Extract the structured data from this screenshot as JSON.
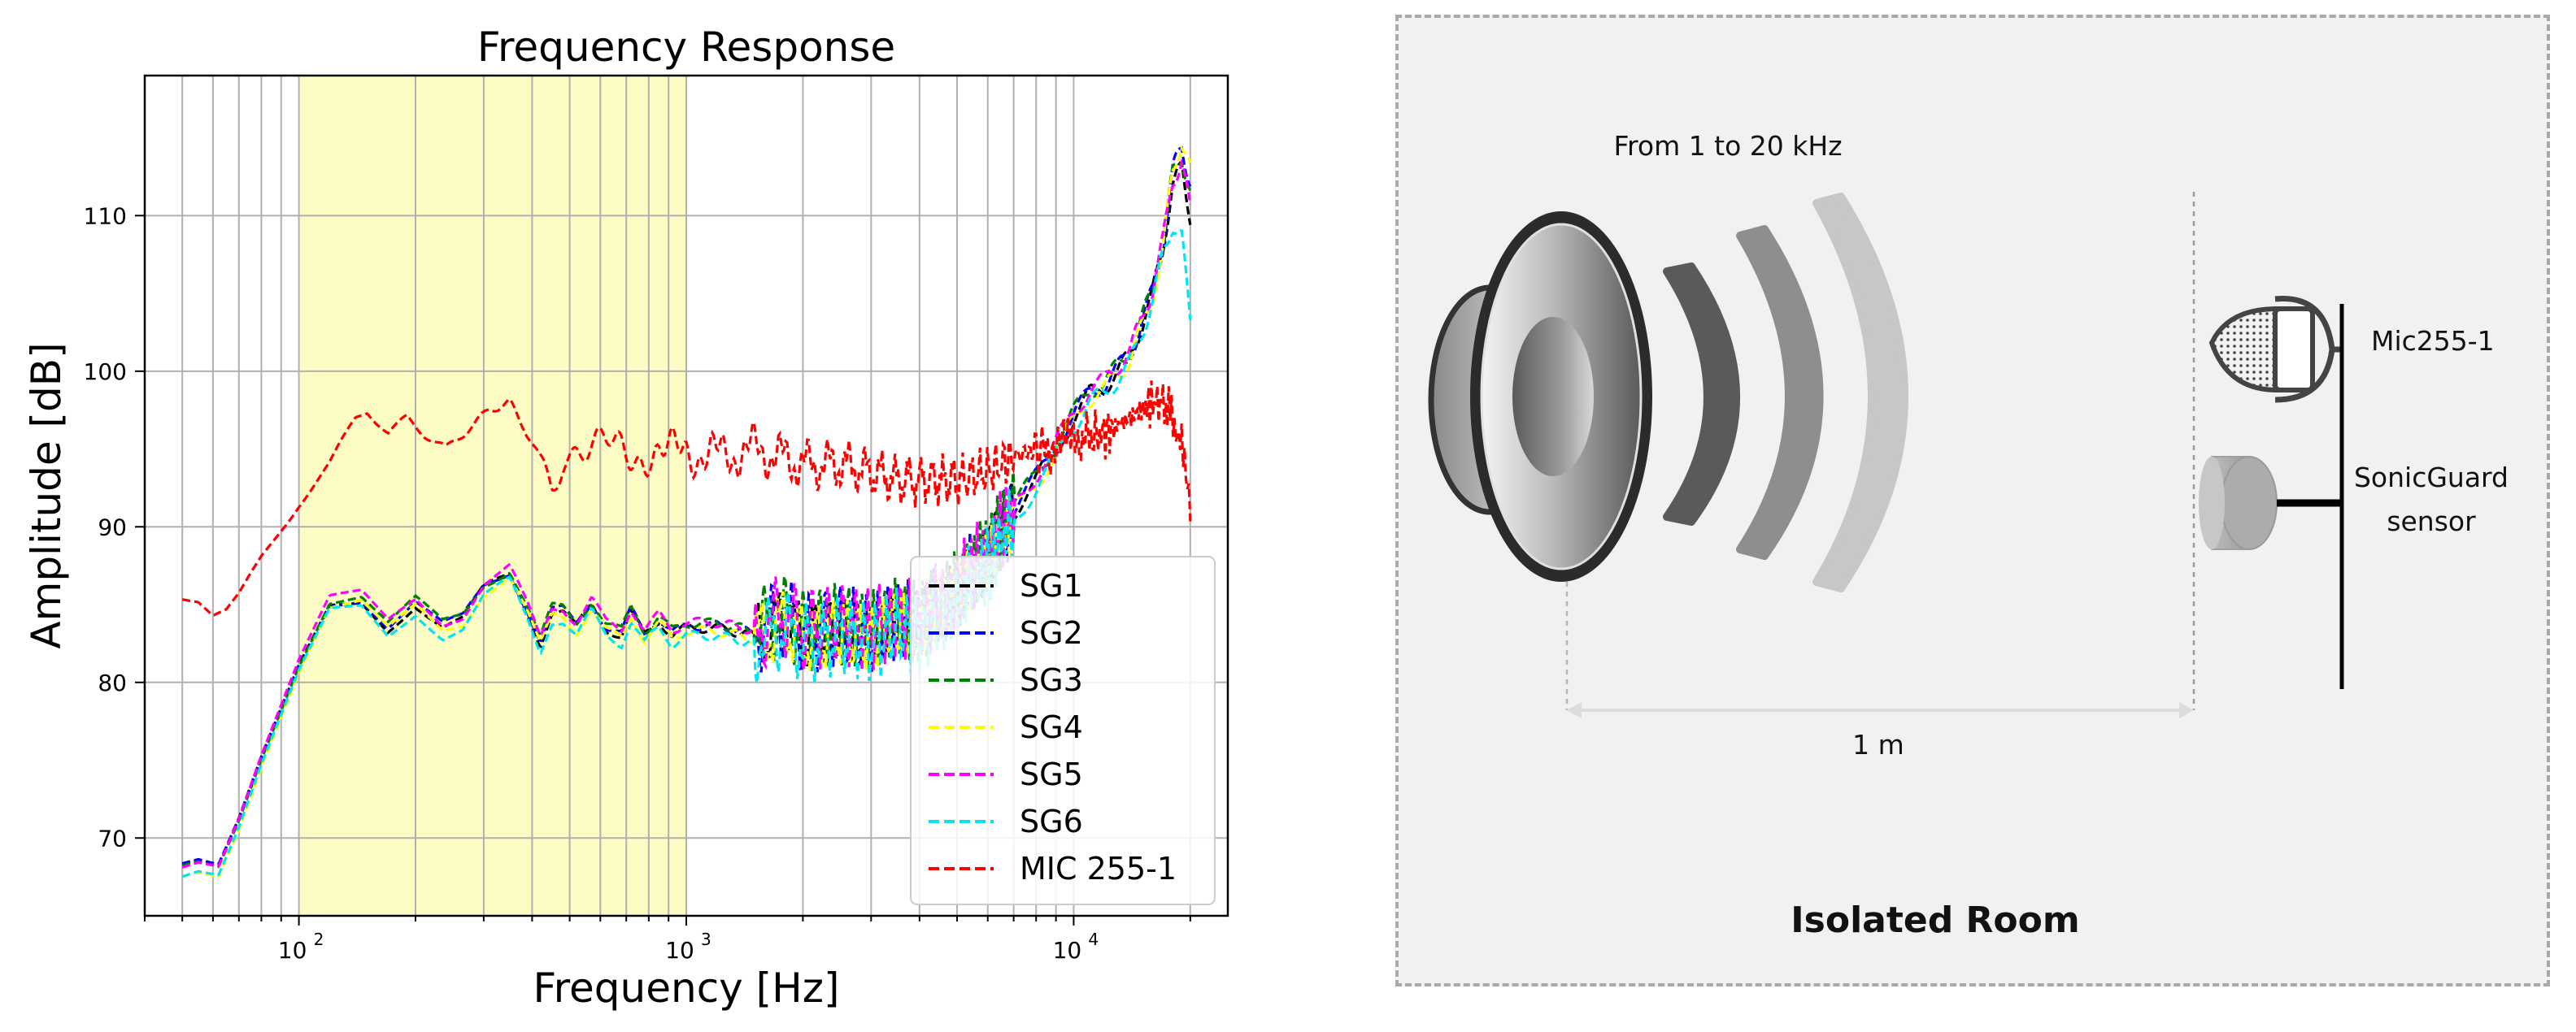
{
  "chart_data": {
    "type": "line",
    "title": "Frequency Response",
    "xlabel": "Frequency [Hz]",
    "ylabel": "Amplitude [dB]",
    "xscale": "log",
    "xlim": [
      40,
      25000
    ],
    "ylim": [
      65,
      119
    ],
    "xticks": [
      {
        "value": 100,
        "base": "10",
        "exp": "2"
      },
      {
        "value": 1000,
        "base": "10",
        "exp": "3"
      },
      {
        "value": 10000,
        "base": "10",
        "exp": "4"
      }
    ],
    "yticks": [
      70,
      80,
      90,
      100,
      110
    ],
    "grid": true,
    "highlight_band": {
      "from": 100,
      "to": 1000,
      "color": "#fdfcc4"
    },
    "legend_position": "lower-right",
    "line_style": "dashed",
    "series": [
      {
        "name": "SG1",
        "color": "#000000",
        "offset": 0.0,
        "tail": 110
      },
      {
        "name": "SG2",
        "color": "#0000ff",
        "offset": 0.15,
        "tail": 112
      },
      {
        "name": "SG3",
        "color": "#008000",
        "offset": 0.3,
        "tail": 111
      },
      {
        "name": "SG4",
        "color": "#ffff00",
        "offset": -0.2,
        "tail": 113
      },
      {
        "name": "SG5",
        "color": "#ff00ff",
        "offset": 0.35,
        "tail": 110
      },
      {
        "name": "SG6",
        "color": "#00e5ee",
        "offset": -0.5,
        "tail": 104
      },
      {
        "name": "MIC 255-1",
        "color": "#ff0000",
        "offset": 0.0,
        "tail": 92
      }
    ],
    "sg_profile": {
      "x": [
        50,
        55,
        62,
        70,
        80,
        100,
        120,
        145,
        170,
        200,
        235,
        265,
        300,
        350,
        390,
        420,
        450,
        480,
        520,
        570,
        620,
        680,
        720,
        780,
        850,
        920,
        1000,
        1200,
        1500,
        1800,
        2000,
        2500,
        3000,
        3500,
        4000,
        5000,
        6000,
        7000,
        8000,
        9000,
        10000,
        11000,
        12000,
        13000,
        14000,
        15000,
        16000,
        17000,
        18000,
        19000,
        20000
      ],
      "y": [
        68,
        68.3,
        68,
        71,
        75,
        81,
        85,
        85.3,
        83.5,
        85,
        83.5,
        84,
        86,
        87,
        84.5,
        82.5,
        84.5,
        84.5,
        83.5,
        85,
        83.5,
        83,
        84.5,
        83,
        84,
        83,
        83.5,
        83.5,
        83,
        84,
        83,
        83.5,
        83,
        84,
        83.5,
        86,
        88,
        91,
        93,
        95,
        97,
        98.5,
        99,
        100,
        101,
        103,
        105,
        108,
        112,
        113,
        110
      ]
    },
    "mic_profile": {
      "x": [
        50,
        55,
        60,
        65,
        70,
        80,
        100,
        120,
        140,
        150,
        170,
        190,
        210,
        240,
        280,
        310,
        350,
        380,
        420,
        450,
        480,
        520,
        600,
        700,
        800,
        900,
        1000,
        1200,
        1500,
        2000,
        2500,
        3000,
        3500,
        4000,
        5000,
        6000,
        7000,
        8000,
        9000,
        10000,
        12000,
        14000,
        16000,
        17000,
        18000,
        19000,
        20000
      ],
      "y": [
        85.5,
        85.2,
        84.2,
        84.5,
        85.5,
        88,
        91.5,
        94,
        97,
        97.5,
        96,
        97,
        96,
        95,
        96.5,
        97.5,
        98,
        96.5,
        94,
        93,
        95,
        95.5,
        95,
        94.5,
        95,
        94.5,
        95,
        94.5,
        95,
        94,
        94,
        93.5,
        93,
        93,
        93,
        93.5,
        94.5,
        95,
        95,
        95.5,
        96,
        97,
        98,
        98,
        97,
        96,
        92
      ]
    }
  },
  "setup": {
    "sweep_label": "From 1 to 20 kHz",
    "mic_label": "Mic255-1",
    "sensor_label_line1": "SonicGuard",
    "sensor_label_line2": "sensor",
    "distance_label": "1 m",
    "room_label": "Isolated Room"
  }
}
